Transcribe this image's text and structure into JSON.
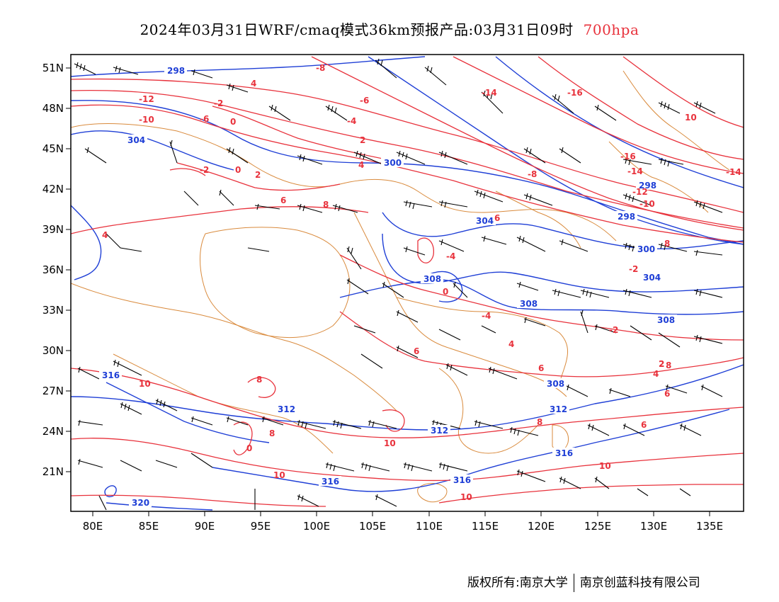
{
  "title": {
    "main": "2024年03月31日WRF/cmaq模式36km预报产品:03月31日09时",
    "level": "700hpa"
  },
  "footer": {
    "copyright": "版权所有:南京大学",
    "company": "南京创蓝科技有限公司"
  },
  "colors": {
    "temperature": "#e8323c",
    "height": "#1f3fd6",
    "border": "#d98a3c",
    "wind": "#000000"
  },
  "axes": {
    "lon_labels": [
      "80E",
      "85E",
      "90E",
      "95E",
      "100E",
      "105E",
      "110E",
      "115E",
      "120E",
      "125E",
      "130E",
      "135E"
    ],
    "lat_labels": [
      "51N",
      "48N",
      "45N",
      "42N",
      "39N",
      "36N",
      "33N",
      "30N",
      "27N",
      "24N",
      "21N"
    ]
  },
  "height_labels": [
    "298",
    "304",
    "300",
    "304",
    "298",
    "298",
    "308",
    "308",
    "312",
    "312",
    "308",
    "316",
    "316",
    "316",
    "320",
    "304",
    "308",
    "312",
    "316",
    "300"
  ],
  "temp_labels": [
    "-8",
    "-6",
    "-2",
    "0",
    "2",
    "4",
    "-4",
    "-12",
    "-10",
    "-16",
    "-14",
    "-16",
    "-14",
    "-12",
    "-10",
    "-8",
    "-6",
    "-4",
    "-2",
    "0",
    "2",
    "4",
    "6",
    "8",
    "10",
    "-14",
    "6",
    "8",
    "10",
    "4",
    "-2",
    "8",
    "6",
    "4",
    "2",
    "0",
    "-2",
    "-4",
    "6",
    "8",
    "10",
    "10",
    "8",
    "10",
    "0",
    "8",
    "6",
    "6",
    "2",
    "4",
    "10"
  ]
}
